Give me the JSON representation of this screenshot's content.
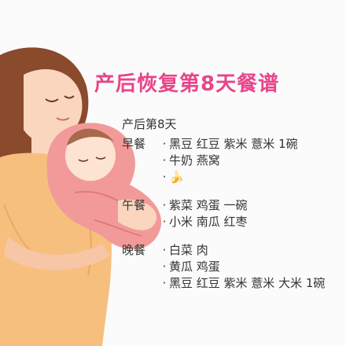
{
  "title": "产后恢复第8天餐谱",
  "subtitle": "产后第8天",
  "bullet": "·",
  "meals": [
    {
      "label": "早餐",
      "items": [
        "黑豆 红豆 紫米 薏米 1碗",
        "牛奶 燕窝",
        "🍌"
      ]
    },
    {
      "label": "午餐",
      "items": [
        "紫菜 鸡蛋 一碗",
        "小米 南瓜 红枣"
      ]
    },
    {
      "label": "晚餐",
      "items": [
        "白菜 肉",
        "黄瓜 鸡蛋",
        "黑豆 红豆 紫米 薏米 大米 1碗"
      ]
    }
  ],
  "colors": {
    "title": "#e8458a",
    "hair": "#8a4a2c",
    "skin": "#fbd6bf",
    "shirt": "#f7bf7e",
    "blanket": "#f29a9a"
  }
}
